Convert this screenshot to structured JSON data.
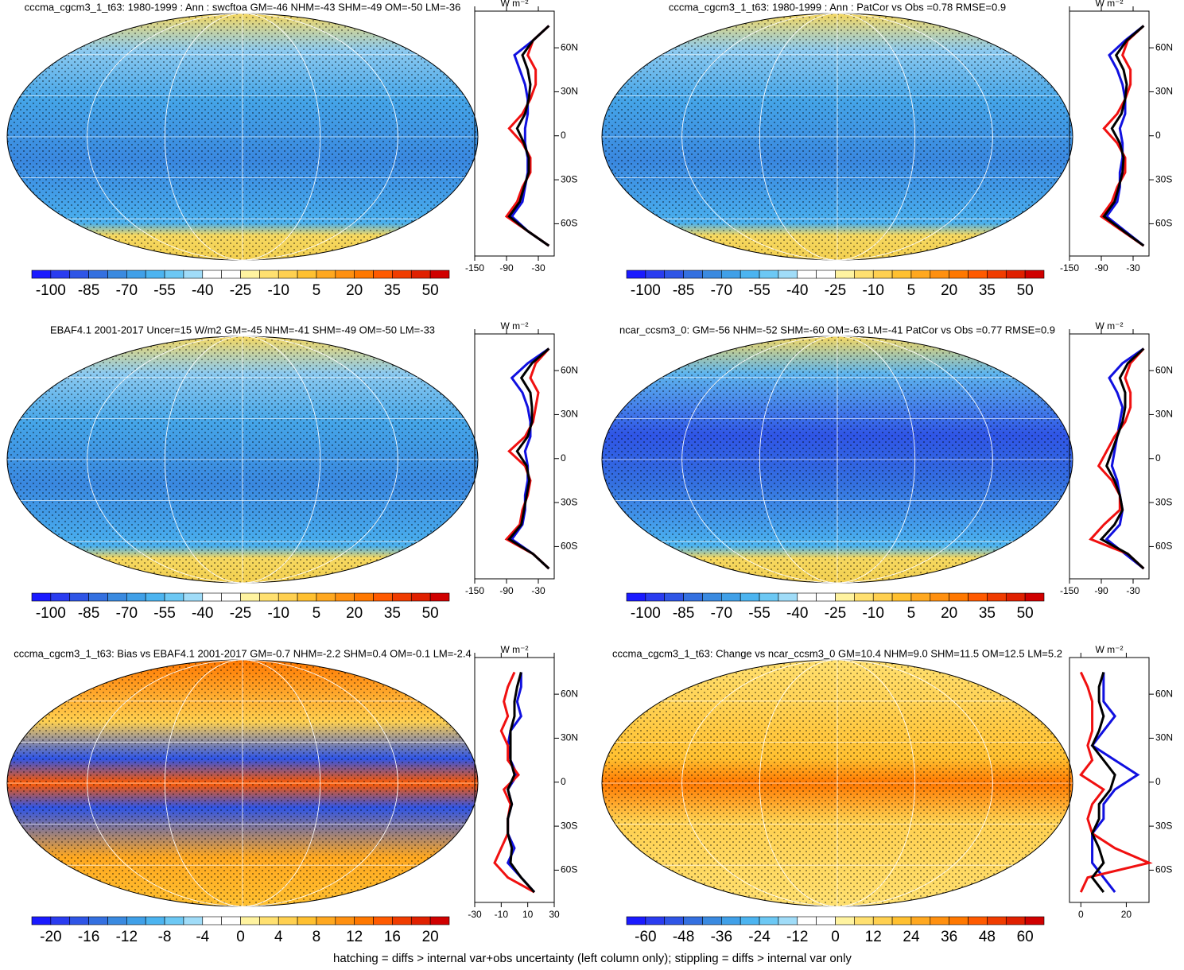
{
  "chart_data": [
    {
      "type": "line",
      "title": "cccma_cgcm3_1_t63: 1980-1999 : Ann : swcftoa GM=-46 NHM=-43 SHM=-49 OM=-50 LM=-36",
      "x_unit": "W m⁻²",
      "lat": [
        -75,
        -65,
        -55,
        -45,
        -35,
        -25,
        -15,
        -5,
        5,
        15,
        25,
        35,
        45,
        55,
        65,
        75
      ],
      "series": [
        {
          "color": "#1010e0",
          "values": [
            -10,
            -50,
            -80,
            -60,
            -55,
            -50,
            -50,
            -55,
            -55,
            -50,
            -50,
            -55,
            -65,
            -75,
            -40,
            -10
          ]
        },
        {
          "color": "#f01010",
          "values": [
            -10,
            -50,
            -90,
            -70,
            -60,
            -45,
            -45,
            -60,
            -85,
            -60,
            -45,
            -35,
            -35,
            -50,
            -40,
            -10
          ]
        },
        {
          "color": "#000000",
          "values": [
            -10,
            -50,
            -85,
            -65,
            -57,
            -48,
            -48,
            -57,
            -70,
            -55,
            -48,
            -45,
            -50,
            -60,
            -40,
            -10
          ]
        }
      ],
      "xlim": [
        -150,
        0
      ],
      "xticks": [
        -150,
        -90,
        -30
      ],
      "ylim": [
        -82,
        85
      ],
      "yticks": [
        {
          "value": -60,
          "label": "60S"
        },
        {
          "value": -30,
          "label": "30S"
        },
        0,
        {
          "value": 30,
          "label": "30N"
        },
        {
          "value": 60,
          "label": "60N"
        }
      ],
      "colorbar": {
        "colors": [
          "#1a1aff",
          "#2a3cf0",
          "#2f55e6",
          "#3470e0",
          "#3a8ae0",
          "#40a0e8",
          "#4cb4f0",
          "#6cc8f4",
          "#a0dcf8",
          "#ffffff",
          "#ffffff",
          "#fff3a0",
          "#ffe070",
          "#ffd050",
          "#ffc030",
          "#ffa820",
          "#ff9010",
          "#ff7800",
          "#ff5a00",
          "#f03c00",
          "#e02000",
          "#d00000"
        ],
        "labels": [
          -100,
          -85,
          -70,
          -55,
          -40,
          -25,
          -10,
          5,
          20,
          35,
          50
        ]
      }
    },
    {
      "type": "line",
      "title": "cccma_cgcm3_1_t63: 1980-1999 : Ann : PatCor vs Obs =0.78 RMSE=0.9",
      "x_unit": "W m⁻²",
      "lat": [
        -75,
        -65,
        -55,
        -45,
        -35,
        -25,
        -15,
        -5,
        5,
        15,
        25,
        35,
        45,
        55,
        65,
        75
      ],
      "series": [
        {
          "color": "#1010e0",
          "values": [
            -10,
            -45,
            -80,
            -60,
            -55,
            -55,
            -50,
            -50,
            -55,
            -45,
            -45,
            -50,
            -60,
            -75,
            -45,
            -10
          ]
        },
        {
          "color": "#f01010",
          "values": [
            -10,
            -50,
            -90,
            -70,
            -60,
            -45,
            -45,
            -60,
            -85,
            -60,
            -45,
            -35,
            -35,
            -50,
            -40,
            -10
          ]
        },
        {
          "color": "#000000",
          "values": [
            -10,
            -48,
            -85,
            -65,
            -57,
            -50,
            -48,
            -55,
            -70,
            -52,
            -45,
            -42,
            -48,
            -62,
            -42,
            -10
          ]
        }
      ],
      "xlim": [
        -150,
        0
      ],
      "xticks": [
        -150,
        -90,
        -30
      ],
      "ylim": [
        -82,
        85
      ],
      "yticks": [
        {
          "value": -60,
          "label": "60S"
        },
        {
          "value": -30,
          "label": "30S"
        },
        0,
        {
          "value": 30,
          "label": "30N"
        },
        {
          "value": 60,
          "label": "60N"
        }
      ],
      "colorbar": {
        "colors": [
          "#1a1aff",
          "#2a3cf0",
          "#2f55e6",
          "#3470e0",
          "#3a8ae0",
          "#40a0e8",
          "#4cb4f0",
          "#6cc8f4",
          "#a0dcf8",
          "#ffffff",
          "#ffffff",
          "#fff3a0",
          "#ffe070",
          "#ffd050",
          "#ffc030",
          "#ffa820",
          "#ff9010",
          "#ff7800",
          "#ff5a00",
          "#f03c00",
          "#e02000",
          "#d00000"
        ],
        "labels": [
          -100,
          -85,
          -70,
          -55,
          -40,
          -25,
          -10,
          5,
          20,
          35,
          50
        ]
      }
    },
    {
      "type": "line",
      "title": "EBAF4.1 2001-2017 Uncer=15 W/m2 GM=-45 NHM=-41 SHM=-49 OM=-50 LM=-33",
      "x_unit": "W m⁻²",
      "lat": [
        -75,
        -65,
        -55,
        -45,
        -35,
        -25,
        -15,
        -5,
        5,
        15,
        25,
        35,
        45,
        55,
        65,
        75
      ],
      "series": [
        {
          "color": "#1010e0",
          "values": [
            -10,
            -40,
            -80,
            -60,
            -55,
            -55,
            -50,
            -50,
            -55,
            -45,
            -45,
            -50,
            -60,
            -80,
            -50,
            -10
          ]
        },
        {
          "color": "#f01010",
          "values": [
            -10,
            -40,
            -90,
            -65,
            -60,
            -50,
            -45,
            -55,
            -85,
            -55,
            -40,
            -35,
            -30,
            -45,
            -35,
            -10
          ]
        },
        {
          "color": "#000000",
          "values": [
            -10,
            -40,
            -85,
            -62,
            -57,
            -52,
            -47,
            -52,
            -70,
            -50,
            -42,
            -42,
            -45,
            -62,
            -42,
            -10
          ]
        }
      ],
      "xlim": [
        -150,
        0
      ],
      "xticks": [
        -150,
        -90,
        -30
      ],
      "ylim": [
        -82,
        85
      ],
      "yticks": [
        {
          "value": -60,
          "label": "60S"
        },
        {
          "value": -30,
          "label": "30S"
        },
        0,
        {
          "value": 30,
          "label": "30N"
        },
        {
          "value": 60,
          "label": "60N"
        }
      ],
      "colorbar": {
        "colors": [
          "#1a1aff",
          "#2a3cf0",
          "#2f55e6",
          "#3470e0",
          "#3a8ae0",
          "#40a0e8",
          "#4cb4f0",
          "#6cc8f4",
          "#a0dcf8",
          "#ffffff",
          "#ffffff",
          "#fff3a0",
          "#ffe070",
          "#ffd050",
          "#ffc030",
          "#ffa820",
          "#ff9010",
          "#ff7800",
          "#ff5a00",
          "#f03c00",
          "#e02000",
          "#d00000"
        ],
        "labels": [
          -100,
          -85,
          -70,
          -55,
          -40,
          -25,
          -10,
          5,
          20,
          35,
          50
        ]
      }
    },
    {
      "type": "line",
      "title": "ncar_ccsm3_0: GM=-56 NHM=-52 SHM=-60 OM=-63 LM=-41 PatCor vs Obs =0.77 RMSE=0.9",
      "x_unit": "W m⁻²",
      "lat": [
        -75,
        -65,
        -55,
        -45,
        -35,
        -25,
        -15,
        -5,
        5,
        15,
        25,
        35,
        45,
        55,
        65,
        75
      ],
      "series": [
        {
          "color": "#1010e0",
          "values": [
            -10,
            -45,
            -80,
            -55,
            -50,
            -55,
            -60,
            -70,
            -65,
            -60,
            -55,
            -50,
            -60,
            -75,
            -50,
            -10
          ]
        },
        {
          "color": "#f01010",
          "values": [
            -10,
            -40,
            -110,
            -85,
            -55,
            -55,
            -70,
            -95,
            -80,
            -65,
            -45,
            -35,
            -35,
            -45,
            -35,
            -10
          ]
        },
        {
          "color": "#000000",
          "values": [
            -10,
            -40,
            -90,
            -65,
            -50,
            -55,
            -65,
            -80,
            -70,
            -60,
            -50,
            -45,
            -45,
            -55,
            -40,
            -10
          ]
        }
      ],
      "xlim": [
        -150,
        0
      ],
      "xticks": [
        -150,
        -90,
        -30
      ],
      "ylim": [
        -82,
        85
      ],
      "yticks": [
        {
          "value": -60,
          "label": "60S"
        },
        {
          "value": -30,
          "label": "30S"
        },
        0,
        {
          "value": 30,
          "label": "30N"
        },
        {
          "value": 60,
          "label": "60N"
        }
      ],
      "colorbar": {
        "colors": [
          "#1a1aff",
          "#2a3cf0",
          "#2f55e6",
          "#3470e0",
          "#3a8ae0",
          "#40a0e8",
          "#4cb4f0",
          "#6cc8f4",
          "#a0dcf8",
          "#ffffff",
          "#ffffff",
          "#fff3a0",
          "#ffe070",
          "#ffd050",
          "#ffc030",
          "#ffa820",
          "#ff9010",
          "#ff7800",
          "#ff5a00",
          "#f03c00",
          "#e02000",
          "#d00000"
        ],
        "labels": [
          -100,
          -85,
          -70,
          -55,
          -40,
          -25,
          -10,
          5,
          20,
          35,
          50
        ]
      }
    },
    {
      "type": "line",
      "title": "cccma_cgcm3_1_t63: Bias vs EBAF4.1 2001-2017 GM=-0.7 NHM=-2.2 SHM=0.4 OM=-0.1 LM=-2.4",
      "x_unit": "W m⁻²",
      "lat": [
        -75,
        -65,
        -55,
        -45,
        -35,
        -25,
        -15,
        -5,
        5,
        15,
        25,
        35,
        45,
        55,
        65,
        75
      ],
      "series": [
        {
          "color": "#1010e0",
          "values": [
            15,
            5,
            -5,
            0,
            -5,
            -5,
            -2,
            -5,
            2,
            -3,
            -5,
            -3,
            5,
            2,
            5,
            5
          ]
        },
        {
          "color": "#f01010",
          "values": [
            15,
            -5,
            -15,
            -10,
            -5,
            -5,
            -3,
            -8,
            3,
            -5,
            -5,
            -10,
            -5,
            -8,
            -5,
            0
          ]
        },
        {
          "color": "#000000",
          "values": [
            15,
            5,
            -3,
            -2,
            -5,
            -5,
            -2,
            -5,
            0,
            -3,
            -3,
            -3,
            0,
            0,
            2,
            5
          ]
        }
      ],
      "xlim": [
        -30,
        30
      ],
      "xticks": [
        -30,
        -10,
        10,
        30
      ],
      "ylim": [
        -82,
        85
      ],
      "yticks": [
        {
          "value": -60,
          "label": "60S"
        },
        {
          "value": -30,
          "label": "30S"
        },
        0,
        {
          "value": 30,
          "label": "30N"
        },
        {
          "value": 60,
          "label": "60N"
        }
      ],
      "colorbar": {
        "colors": [
          "#1a1aff",
          "#2a3cf0",
          "#2f55e6",
          "#3470e0",
          "#3a8ae0",
          "#40a0e8",
          "#4cb4f0",
          "#6cc8f4",
          "#a0dcf8",
          "#ffffff",
          "#ffffff",
          "#fff3a0",
          "#ffe070",
          "#ffd050",
          "#ffc030",
          "#ffa820",
          "#ff9010",
          "#ff7800",
          "#ff5a00",
          "#f03c00",
          "#e02000",
          "#d00000"
        ],
        "labels": [
          -20,
          -16,
          -12,
          -8,
          -4,
          0,
          4,
          8,
          12,
          16,
          20
        ]
      }
    },
    {
      "type": "line",
      "title": "cccma_cgcm3_1_t63: Change vs ncar_ccsm3_0 GM=10.4 NHM=9.0 SHM=11.5 OM=12.5 LM=5.2",
      "x_unit": "W m⁻²",
      "lat": [
        -75,
        -65,
        -55,
        -45,
        -35,
        -25,
        -15,
        -5,
        5,
        15,
        25,
        35,
        45,
        55,
        65,
        75
      ],
      "series": [
        {
          "color": "#1010e0",
          "values": [
            15,
            10,
            5,
            5,
            5,
            10,
            10,
            15,
            25,
            15,
            5,
            10,
            15,
            10,
            10,
            10
          ]
        },
        {
          "color": "#f01010",
          "values": [
            0,
            3,
            30,
            15,
            5,
            3,
            5,
            10,
            0,
            5,
            3,
            5,
            5,
            5,
            3,
            0
          ]
        },
        {
          "color": "#000000",
          "values": [
            10,
            5,
            10,
            8,
            5,
            8,
            8,
            13,
            15,
            10,
            5,
            8,
            10,
            8,
            8,
            10
          ]
        }
      ],
      "xlim": [
        -5,
        30
      ],
      "xticks": [
        0,
        20
      ],
      "ylim": [
        -82,
        85
      ],
      "yticks": [
        {
          "value": -60,
          "label": "60S"
        },
        {
          "value": -30,
          "label": "30S"
        },
        0,
        {
          "value": 30,
          "label": "30N"
        },
        {
          "value": 60,
          "label": "60N"
        }
      ],
      "colorbar": {
        "colors": [
          "#1a1aff",
          "#2a3cf0",
          "#2f55e6",
          "#3470e0",
          "#3a8ae0",
          "#40a0e8",
          "#4cb4f0",
          "#6cc8f4",
          "#a0dcf8",
          "#ffffff",
          "#ffffff",
          "#fff3a0",
          "#ffe070",
          "#ffd050",
          "#ffc030",
          "#ffa820",
          "#ff9010",
          "#ff7800",
          "#ff5a00",
          "#f03c00",
          "#e02000",
          "#d00000"
        ],
        "labels": [
          -60,
          -48,
          -36,
          -24,
          -12,
          0,
          12,
          24,
          36,
          48,
          60
        ]
      }
    }
  ],
  "footnote": "hatching = diffs > internal var+obs uncertainty (left column only); stippling = diffs > internal var only"
}
